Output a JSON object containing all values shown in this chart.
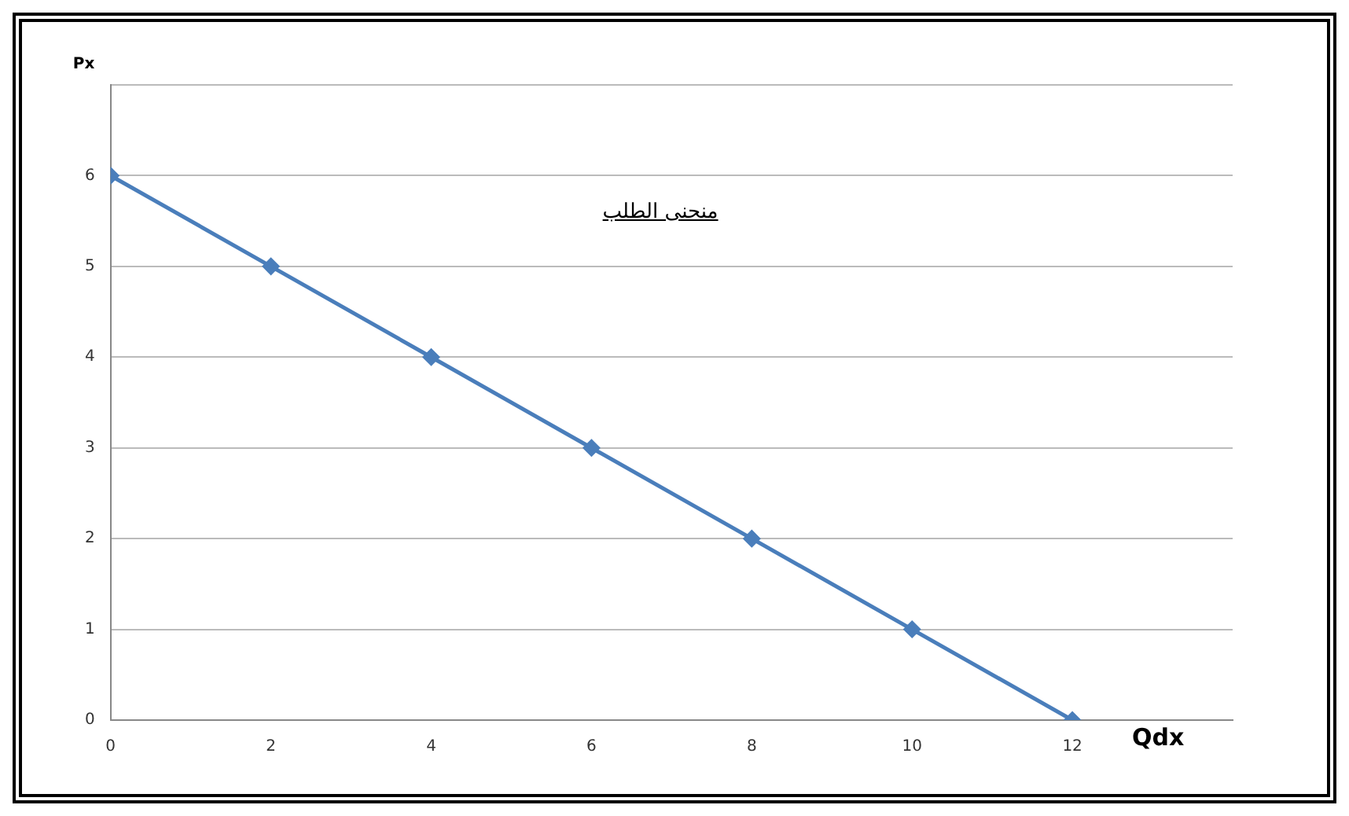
{
  "chart_data": {
    "type": "line",
    "xlabel": "Qdx",
    "ylabel": "Px",
    "annotations": [
      "منحنى الطلب"
    ],
    "x": [
      0,
      2,
      4,
      6,
      8,
      10,
      12
    ],
    "series": [
      {
        "color": "#4a7ebb",
        "values": [
          6,
          5,
          4,
          3,
          2,
          1,
          0
        ]
      }
    ],
    "xlim": [
      0,
      14
    ],
    "xticks": [
      0,
      2,
      4,
      6,
      8,
      10,
      12
    ],
    "ylim": [
      0,
      7
    ],
    "yticks": [
      0,
      1,
      2,
      3,
      4,
      5,
      6,
      {
        "value": 7,
        "label": null
      }
    ],
    "grid": "y",
    "legend": false,
    "marker": "diamond",
    "line_style": "solid"
  }
}
